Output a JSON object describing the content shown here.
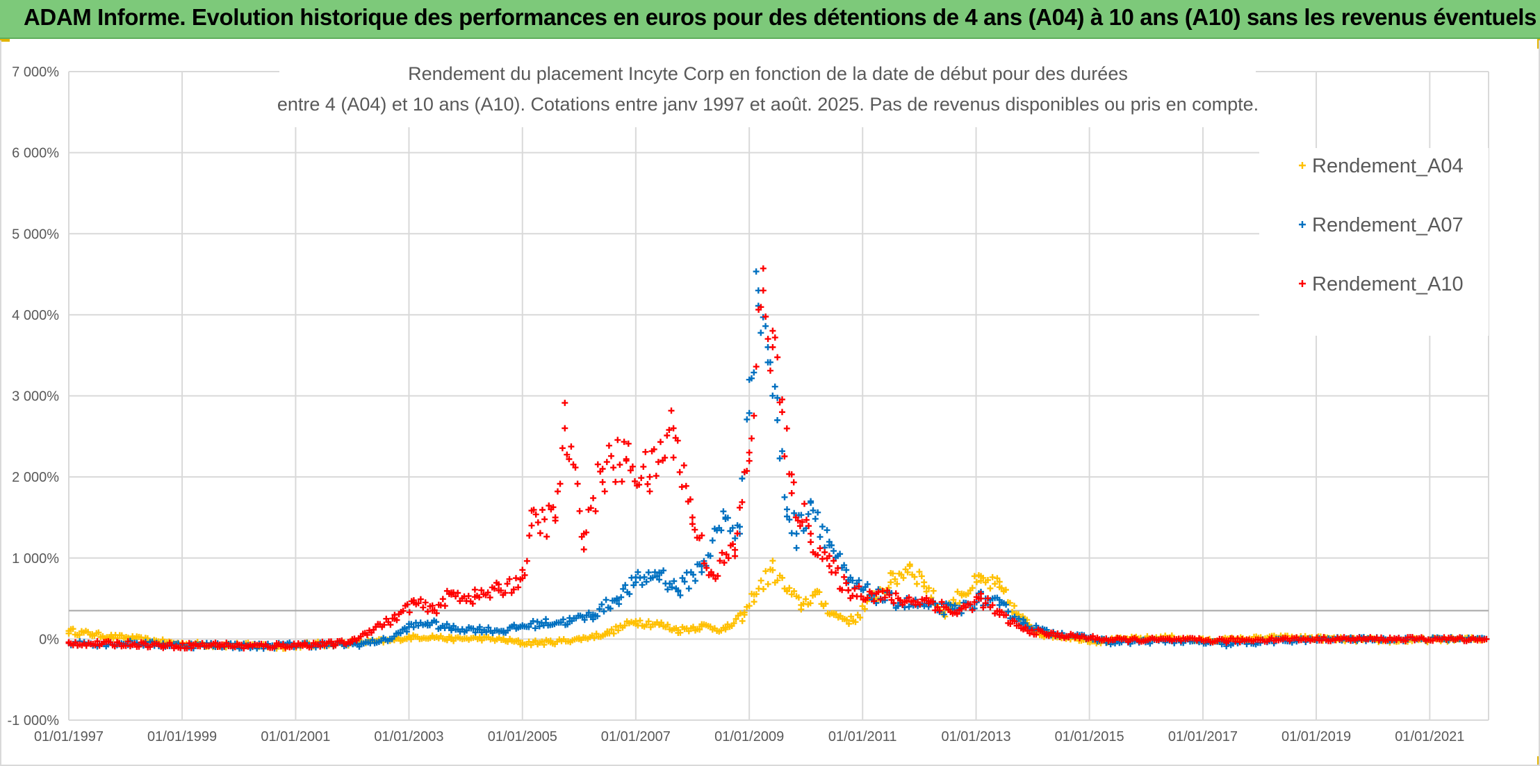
{
  "banner": {
    "title": "ADAM Informe. Evolution historique des performances en euros pour des détentions de 4 ans (A04) à 10 ans (A10) sans les revenus éventuels",
    "background": "#7dc97a"
  },
  "chart_data": {
    "type": "scatter",
    "title_lines": [
      "Rendement du placement Incyte Corp en fonction de la date de début pour des durées",
      "entre 4 (A04) et 10 ans (A10). Cotations entre janv 1997 et août. 2025. Pas de revenus disponibles ou pris en compte."
    ],
    "xlabel": "",
    "ylabel": "",
    "x_tick_labels": [
      "01/01/1997",
      "01/01/1999",
      "01/01/2001",
      "01/01/2003",
      "01/01/2005",
      "01/01/2007",
      "01/01/2009",
      "01/01/2011",
      "01/01/2013",
      "01/01/2015",
      "01/01/2017",
      "01/01/2019",
      "01/01/2021"
    ],
    "x_range": [
      "1997-01-01",
      "2022-01-15"
    ],
    "y_tick_labels": [
      "-1 000%",
      "0%",
      "1 000%",
      "2 000%",
      "3 000%",
      "4 000%",
      "5 000%",
      "6 000%",
      "7 000%"
    ],
    "ylim": [
      -1000,
      7000
    ],
    "y_unit": "%",
    "grid": true,
    "reference_line_y": 350,
    "legend_position": "top-right",
    "marker": "+",
    "series": [
      {
        "name": "Rendement_A04",
        "color": "#ffc000",
        "points": [
          [
            "1997-01-01",
            100
          ],
          [
            "1997-06-01",
            60
          ],
          [
            "1997-10-01",
            30
          ],
          [
            "1998-03-01",
            10
          ],
          [
            "1998-08-01",
            -30
          ],
          [
            "1999-01-01",
            -60
          ],
          [
            "1999-08-01",
            -70
          ],
          [
            "2000-03-01",
            -80
          ],
          [
            "2000-09-01",
            -90
          ],
          [
            "2001-03-01",
            -70
          ],
          [
            "2001-09-01",
            -60
          ],
          [
            "2002-03-01",
            -40
          ],
          [
            "2002-09-01",
            -20
          ],
          [
            "2003-01-01",
            20
          ],
          [
            "2003-06-01",
            30
          ],
          [
            "2003-10-01",
            0
          ],
          [
            "2004-04-01",
            10
          ],
          [
            "2004-09-01",
            -10
          ],
          [
            "2005-01-01",
            -50
          ],
          [
            "2005-07-01",
            -40
          ],
          [
            "2006-01-01",
            0
          ],
          [
            "2006-07-01",
            70
          ],
          [
            "2007-01-01",
            220
          ],
          [
            "2007-06-01",
            180
          ],
          [
            "2007-10-01",
            110
          ],
          [
            "2008-03-01",
            160
          ],
          [
            "2008-08-01",
            120
          ],
          [
            "2008-12-01",
            300
          ],
          [
            "2009-02-01",
            550
          ],
          [
            "2009-06-01",
            850
          ],
          [
            "2009-09-01",
            600
          ],
          [
            "2009-12-01",
            420
          ],
          [
            "2010-03-01",
            550
          ],
          [
            "2010-07-01",
            300
          ],
          [
            "2010-11-01",
            220
          ],
          [
            "2011-03-01",
            500
          ],
          [
            "2011-07-01",
            700
          ],
          [
            "2011-11-01",
            900
          ],
          [
            "2012-02-01",
            700
          ],
          [
            "2012-06-01",
            320
          ],
          [
            "2012-10-01",
            560
          ],
          [
            "2013-02-01",
            720
          ],
          [
            "2013-06-01",
            640
          ],
          [
            "2013-10-01",
            280
          ],
          [
            "2014-03-01",
            60
          ],
          [
            "2014-09-01",
            20
          ],
          [
            "2015-03-01",
            -30
          ],
          [
            "2015-09-01",
            0
          ],
          [
            "2016-06-01",
            20
          ],
          [
            "2017-01-01",
            -20
          ],
          [
            "2017-09-01",
            0
          ],
          [
            "2018-06-01",
            20
          ],
          [
            "2019-01-01",
            10
          ],
          [
            "2019-09-01",
            -10
          ],
          [
            "2020-06-01",
            -20
          ],
          [
            "2021-01-01",
            -10
          ],
          [
            "2021-09-01",
            0
          ],
          [
            "2022-01-01",
            0
          ]
        ]
      },
      {
        "name": "Rendement_A07",
        "color": "#0070c0",
        "points": [
          [
            "1997-01-01",
            -50
          ],
          [
            "1997-08-01",
            -60
          ],
          [
            "1998-03-01",
            -50
          ],
          [
            "1998-09-01",
            -70
          ],
          [
            "1999-03-01",
            -80
          ],
          [
            "1999-09-01",
            -70
          ],
          [
            "2000-03-01",
            -90
          ],
          [
            "2000-09-01",
            -80
          ],
          [
            "2001-03-01",
            -70
          ],
          [
            "2001-09-01",
            -70
          ],
          [
            "2002-03-01",
            -60
          ],
          [
            "2002-09-01",
            0
          ],
          [
            "2003-01-01",
            150
          ],
          [
            "2003-05-01",
            200
          ],
          [
            "2003-10-01",
            130
          ],
          [
            "2004-04-01",
            120
          ],
          [
            "2004-09-01",
            100
          ],
          [
            "2005-01-01",
            160
          ],
          [
            "2005-06-01",
            200
          ],
          [
            "2005-11-01",
            220
          ],
          [
            "2006-04-01",
            300
          ],
          [
            "2006-09-01",
            500
          ],
          [
            "2007-01-01",
            700
          ],
          [
            "2007-06-01",
            820
          ],
          [
            "2007-10-01",
            600
          ],
          [
            "2008-03-01",
            900
          ],
          [
            "2008-08-01",
            1500
          ],
          [
            "2008-11-01",
            1300
          ],
          [
            "2009-01-01",
            3200
          ],
          [
            "2009-03-01",
            4300
          ],
          [
            "2009-05-01",
            3600
          ],
          [
            "2009-07-01",
            2700
          ],
          [
            "2009-09-01",
            1600
          ],
          [
            "2009-11-01",
            1300
          ],
          [
            "2010-02-01",
            1700
          ],
          [
            "2010-06-01",
            1200
          ],
          [
            "2010-10-01",
            700
          ],
          [
            "2011-03-01",
            550
          ],
          [
            "2011-09-01",
            450
          ],
          [
            "2012-03-01",
            400
          ],
          [
            "2012-09-01",
            350
          ],
          [
            "2013-02-01",
            500
          ],
          [
            "2013-06-01",
            420
          ],
          [
            "2013-11-01",
            200
          ],
          [
            "2014-04-01",
            80
          ],
          [
            "2014-10-01",
            40
          ],
          [
            "2015-06-01",
            -40
          ],
          [
            "2016-06-01",
            -20
          ],
          [
            "2017-06-01",
            -60
          ],
          [
            "2018-06-01",
            -20
          ],
          [
            "2019-06-01",
            0
          ],
          [
            "2020-06-01",
            0
          ],
          [
            "2021-06-01",
            0
          ],
          [
            "2022-01-01",
            0
          ]
        ]
      },
      {
        "name": "Rendement_A10",
        "color": "#ff0000",
        "points": [
          [
            "1997-01-01",
            -50
          ],
          [
            "1997-08-01",
            -60
          ],
          [
            "1998-03-01",
            -60
          ],
          [
            "1998-09-01",
            -80
          ],
          [
            "1999-03-01",
            -80
          ],
          [
            "1999-09-01",
            -70
          ],
          [
            "2000-03-01",
            -90
          ],
          [
            "2000-09-01",
            -80
          ],
          [
            "2001-03-01",
            -70
          ],
          [
            "2001-09-01",
            -60
          ],
          [
            "2002-01-01",
            -30
          ],
          [
            "2002-06-01",
            150
          ],
          [
            "2002-10-01",
            250
          ],
          [
            "2003-02-01",
            450
          ],
          [
            "2003-06-01",
            350
          ],
          [
            "2003-10-01",
            550
          ],
          [
            "2004-03-01",
            520
          ],
          [
            "2004-08-01",
            600
          ],
          [
            "2005-01-01",
            750
          ],
          [
            "2005-03-01",
            1400
          ],
          [
            "2005-08-01",
            1500
          ],
          [
            "2005-10-01",
            2600
          ],
          [
            "2006-02-01",
            1300
          ],
          [
            "2006-06-01",
            2100
          ],
          [
            "2006-11-01",
            2200
          ],
          [
            "2007-04-01",
            2000
          ],
          [
            "2007-09-01",
            2600
          ],
          [
            "2008-01-01",
            1500
          ],
          [
            "2008-05-01",
            800
          ],
          [
            "2008-10-01",
            1100
          ],
          [
            "2009-01-01",
            2300
          ],
          [
            "2009-04-01",
            4300
          ],
          [
            "2009-06-01",
            3600
          ],
          [
            "2009-08-01",
            2800
          ],
          [
            "2009-10-01",
            1800
          ],
          [
            "2010-02-01",
            1300
          ],
          [
            "2010-06-01",
            900
          ],
          [
            "2010-10-01",
            600
          ],
          [
            "2011-03-01",
            560
          ],
          [
            "2011-09-01",
            480
          ],
          [
            "2012-03-01",
            470
          ],
          [
            "2012-09-01",
            320
          ],
          [
            "2013-02-01",
            500
          ],
          [
            "2013-06-01",
            300
          ],
          [
            "2013-11-01",
            120
          ],
          [
            "2014-04-01",
            60
          ],
          [
            "2014-10-01",
            30
          ],
          [
            "2015-06-01",
            -10
          ],
          [
            "2016-06-01",
            -10
          ],
          [
            "2017-06-01",
            -20
          ],
          [
            "2018-06-01",
            0
          ],
          [
            "2019-06-01",
            0
          ],
          [
            "2020-06-01",
            0
          ],
          [
            "2021-06-01",
            0
          ],
          [
            "2022-01-01",
            0
          ]
        ]
      }
    ]
  }
}
